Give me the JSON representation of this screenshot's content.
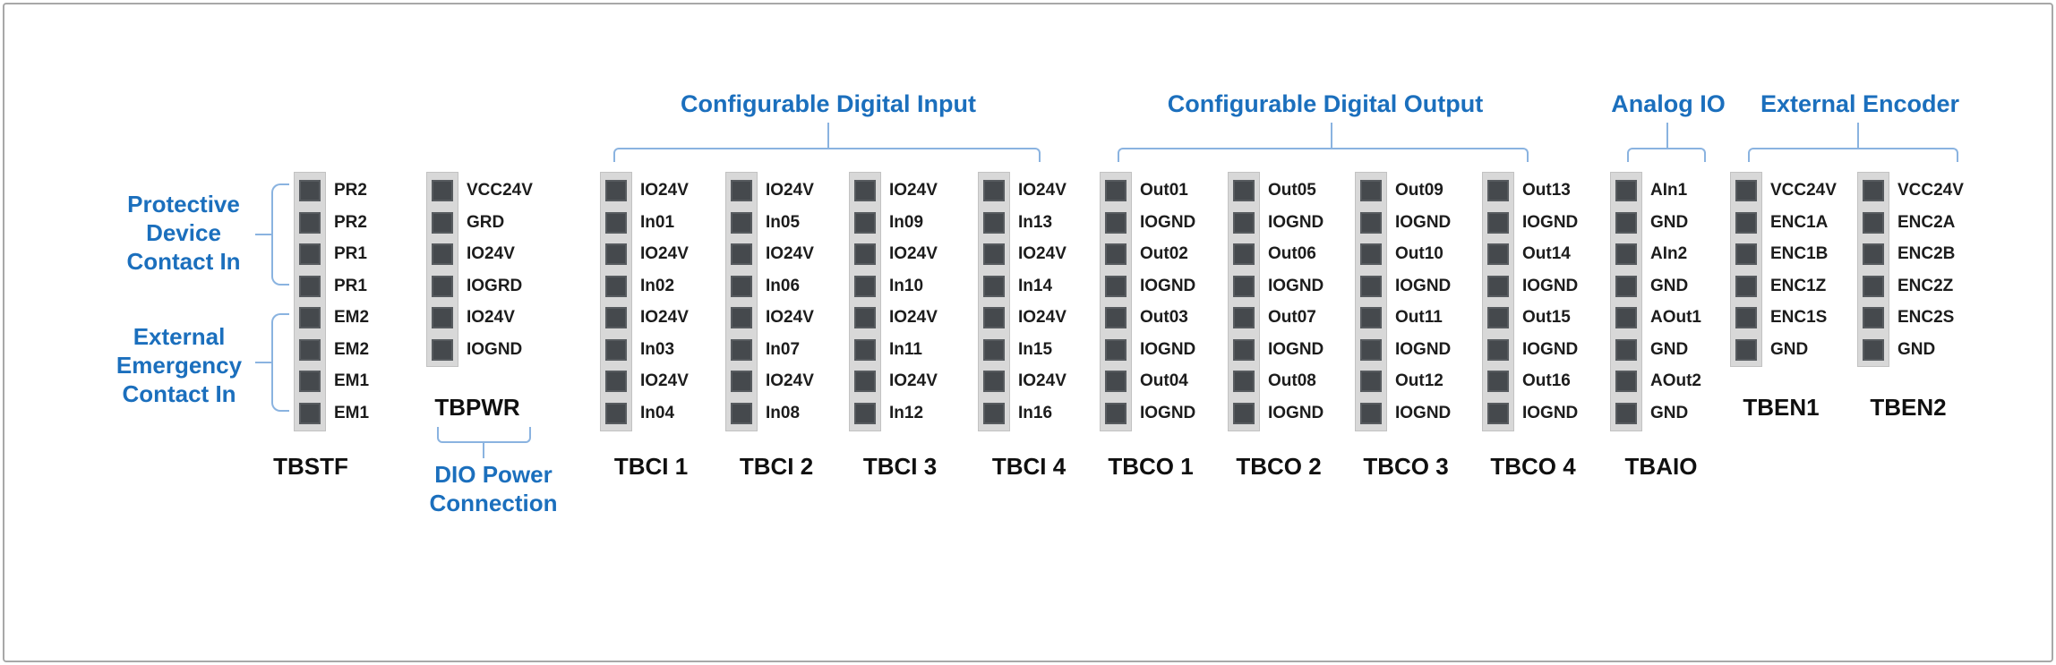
{
  "colors": {
    "accent": "#1b6fbd",
    "bracket": "#8ab3e0",
    "strip-bg": "#d8d8d8",
    "strip-border": "#c2c2c2",
    "pin-square": "#45494d",
    "pin-label": "#1c1c1c",
    "block-name": "#101010",
    "frame": "#a8a8a8"
  },
  "group_headers": [
    {
      "label": "Configurable Digital Input"
    },
    {
      "label": "Configurable Digital Output"
    },
    {
      "label": "Analog IO"
    },
    {
      "label": "External Encoder"
    }
  ],
  "side_annotations": [
    {
      "lines": [
        "Protective",
        "Device",
        "Contact In"
      ]
    },
    {
      "lines": [
        "External",
        "Emergency",
        "Contact In"
      ]
    }
  ],
  "captions": {
    "tbpwr": {
      "lines": [
        "DIO Power",
        "Connection"
      ]
    }
  },
  "blocks": [
    {
      "name": "TBSTF",
      "pins": [
        "PR2",
        "PR2",
        "PR1",
        "PR1",
        "EM2",
        "EM2",
        "EM1",
        "EM1"
      ]
    },
    {
      "name": "TBPWR",
      "pins": [
        "VCC24V",
        "GRD",
        "IO24V",
        "IOGRD",
        "IO24V",
        "IOGND"
      ]
    },
    {
      "name": "TBCI 1",
      "pins": [
        "IO24V",
        "In01",
        "IO24V",
        "In02",
        "IO24V",
        "In03",
        "IO24V",
        "In04"
      ]
    },
    {
      "name": "TBCI 2",
      "pins": [
        "IO24V",
        "In05",
        "IO24V",
        "In06",
        "IO24V",
        "In07",
        "IO24V",
        "In08"
      ]
    },
    {
      "name": "TBCI 3",
      "pins": [
        "IO24V",
        "In09",
        "IO24V",
        "In10",
        "IO24V",
        "In11",
        "IO24V",
        "In12"
      ]
    },
    {
      "name": "TBCI 4",
      "pins": [
        "IO24V",
        "In13",
        "IO24V",
        "In14",
        "IO24V",
        "In15",
        "IO24V",
        "In16"
      ]
    },
    {
      "name": "TBCO 1",
      "pins": [
        "Out01",
        "IOGND",
        "Out02",
        "IOGND",
        "Out03",
        "IOGND",
        "Out04",
        "IOGND"
      ]
    },
    {
      "name": "TBCO 2",
      "pins": [
        "Out05",
        "IOGND",
        "Out06",
        "IOGND",
        "Out07",
        "IOGND",
        "Out08",
        "IOGND"
      ]
    },
    {
      "name": "TBCO 3",
      "pins": [
        "Out09",
        "IOGND",
        "Out10",
        "IOGND",
        "Out11",
        "IOGND",
        "Out12",
        "IOGND"
      ]
    },
    {
      "name": "TBCO 4",
      "pins": [
        "Out13",
        "IOGND",
        "Out14",
        "IOGND",
        "Out15",
        "IOGND",
        "Out16",
        "IOGND"
      ]
    },
    {
      "name": "TBAIO",
      "pins": [
        "AIn1",
        "GND",
        "AIn2",
        "GND",
        "AOut1",
        "GND",
        "AOut2",
        "GND"
      ]
    },
    {
      "name": "TBEN1",
      "pins": [
        "VCC24V",
        "ENC1A",
        "ENC1B",
        "ENC1Z",
        "ENC1S",
        "GND"
      ]
    },
    {
      "name": "TBEN2",
      "pins": [
        "VCC24V",
        "ENC2A",
        "ENC2B",
        "ENC2Z",
        "ENC2S",
        "GND"
      ]
    }
  ]
}
